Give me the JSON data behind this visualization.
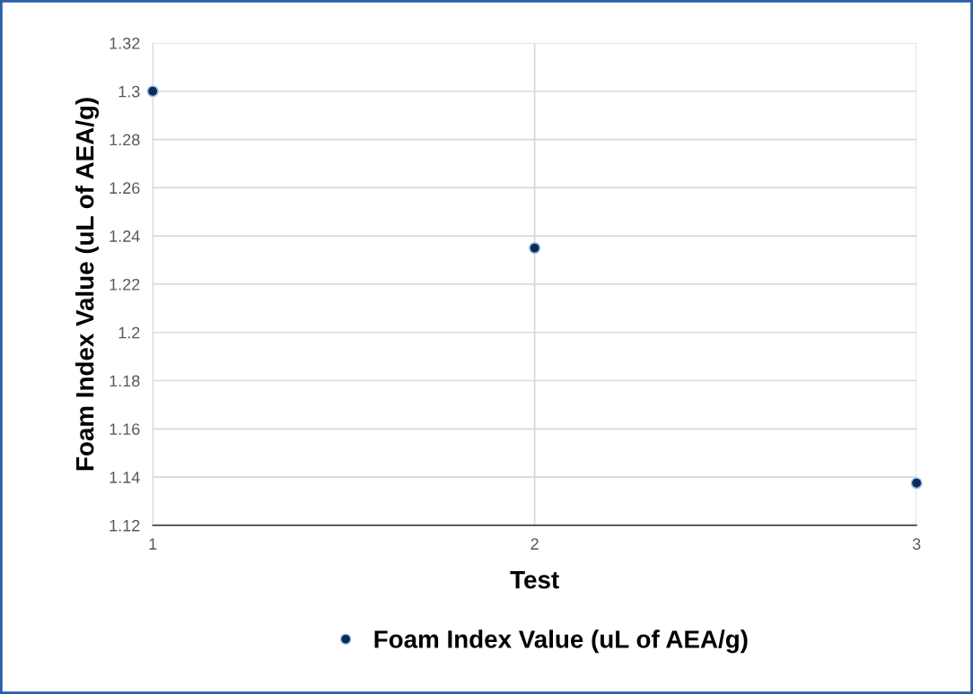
{
  "chart_data": {
    "type": "scatter",
    "xlabel": "Test",
    "ylabel": "Foam Index Value (uL of AEA/g)",
    "x": [
      1,
      2,
      3
    ],
    "series": [
      {
        "name": "Foam Index Value (uL of AEA/g)",
        "color": "#0d2a5c",
        "values": [
          1.3,
          1.235,
          1.1375
        ]
      }
    ],
    "xlim": [
      1,
      3
    ],
    "xticks": [
      1,
      2,
      3
    ],
    "ylim": [
      1.12,
      1.32
    ],
    "yticks": [
      1.12,
      1.14,
      1.16,
      1.18,
      1.2,
      1.22,
      1.24,
      1.26,
      1.28,
      1.3,
      1.32
    ],
    "grid": true,
    "legend": "bottom",
    "marker": "circle"
  }
}
